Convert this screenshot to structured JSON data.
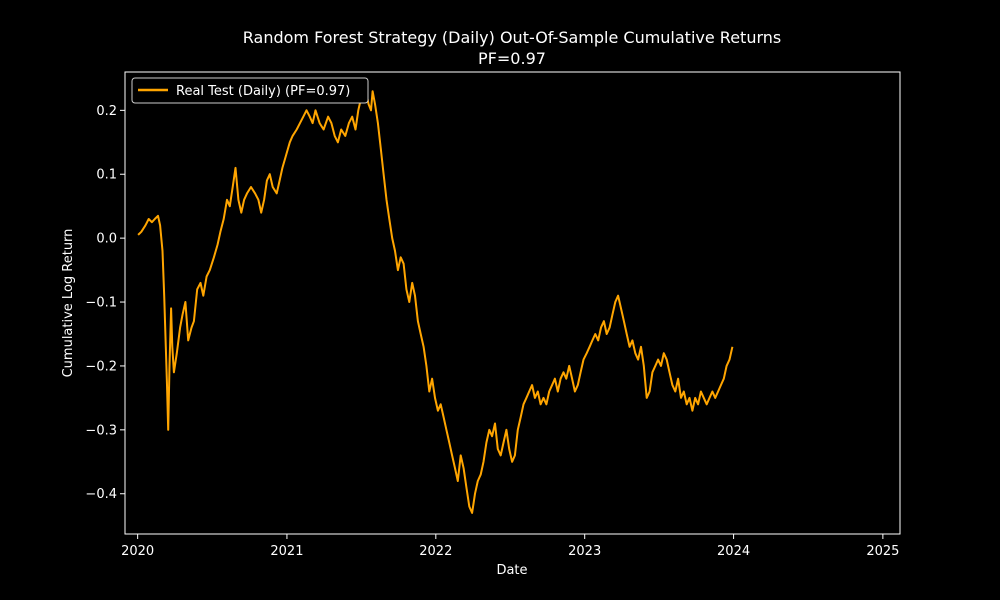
{
  "chart_data": {
    "type": "line",
    "title": "Random Forest Strategy (Daily) Out-Of-Sample Cumulative Returns",
    "subtitle": "PF=0.97",
    "xlabel": "Date",
    "ylabel": "Cumulative Log Return",
    "x_ticks": [
      "2020",
      "2021",
      "2022",
      "2023",
      "2024",
      "2025"
    ],
    "y_ticks": [
      "0.2",
      "0.1",
      "0.0",
      "−0.1",
      "−0.2",
      "−0.3",
      "−0.4"
    ],
    "xlim": [
      "2019-12-01",
      "2025-02-12"
    ],
    "ylim": [
      -0.463,
      0.26
    ],
    "grid": false,
    "legend": {
      "position": "top-left"
    },
    "series": [
      {
        "name": "Real Test (Daily) (PF=0.97)",
        "color": "#ffa500",
        "points": [
          [
            "2020-01-02",
            0.005
          ],
          [
            "2020-01-10",
            0.01
          ],
          [
            "2020-01-20",
            0.02
          ],
          [
            "2020-01-28",
            0.03
          ],
          [
            "2020-02-05",
            0.025
          ],
          [
            "2020-02-12",
            0.03
          ],
          [
            "2020-02-20",
            0.035
          ],
          [
            "2020-02-25",
            0.02
          ],
          [
            "2020-03-02",
            -0.02
          ],
          [
            "2020-03-06",
            -0.09
          ],
          [
            "2020-03-10",
            -0.17
          ],
          [
            "2020-03-13",
            -0.23
          ],
          [
            "2020-03-16",
            -0.3
          ],
          [
            "2020-03-19",
            -0.2
          ],
          [
            "2020-03-23",
            -0.11
          ],
          [
            "2020-03-26",
            -0.17
          ],
          [
            "2020-03-30",
            -0.21
          ],
          [
            "2020-04-06",
            -0.18
          ],
          [
            "2020-04-14",
            -0.14
          ],
          [
            "2020-04-20",
            -0.12
          ],
          [
            "2020-04-27",
            -0.1
          ],
          [
            "2020-05-04",
            -0.16
          ],
          [
            "2020-05-12",
            -0.14
          ],
          [
            "2020-05-18",
            -0.13
          ],
          [
            "2020-05-26",
            -0.08
          ],
          [
            "2020-06-03",
            -0.07
          ],
          [
            "2020-06-10",
            -0.09
          ],
          [
            "2020-06-18",
            -0.06
          ],
          [
            "2020-06-26",
            -0.05
          ],
          [
            "2020-07-06",
            -0.03
          ],
          [
            "2020-07-15",
            -0.01
          ],
          [
            "2020-07-22",
            0.01
          ],
          [
            "2020-07-30",
            0.03
          ],
          [
            "2020-08-07",
            0.06
          ],
          [
            "2020-08-14",
            0.05
          ],
          [
            "2020-08-21",
            0.08
          ],
          [
            "2020-08-28",
            0.11
          ],
          [
            "2020-09-04",
            0.06
          ],
          [
            "2020-09-11",
            0.04
          ],
          [
            "2020-09-18",
            0.06
          ],
          [
            "2020-09-25",
            0.07
          ],
          [
            "2020-10-05",
            0.08
          ],
          [
            "2020-10-15",
            0.07
          ],
          [
            "2020-10-23",
            0.06
          ],
          [
            "2020-10-30",
            0.04
          ],
          [
            "2020-11-06",
            0.06
          ],
          [
            "2020-11-13",
            0.09
          ],
          [
            "2020-11-20",
            0.1
          ],
          [
            "2020-11-27",
            0.08
          ],
          [
            "2020-12-07",
            0.07
          ],
          [
            "2020-12-14",
            0.09
          ],
          [
            "2020-12-21",
            0.11
          ],
          [
            "2020-12-30",
            0.13
          ],
          [
            "2021-01-08",
            0.15
          ],
          [
            "2021-01-15",
            0.16
          ],
          [
            "2021-01-25",
            0.17
          ],
          [
            "2021-02-02",
            0.18
          ],
          [
            "2021-02-10",
            0.19
          ],
          [
            "2021-02-18",
            0.2
          ],
          [
            "2021-02-26",
            0.19
          ],
          [
            "2021-03-05",
            0.18
          ],
          [
            "2021-03-12",
            0.2
          ],
          [
            "2021-03-22",
            0.18
          ],
          [
            "2021-04-01",
            0.17
          ],
          [
            "2021-04-12",
            0.19
          ],
          [
            "2021-04-20",
            0.18
          ],
          [
            "2021-04-28",
            0.16
          ],
          [
            "2021-05-06",
            0.15
          ],
          [
            "2021-05-14",
            0.17
          ],
          [
            "2021-05-24",
            0.16
          ],
          [
            "2021-06-02",
            0.18
          ],
          [
            "2021-06-10",
            0.19
          ],
          [
            "2021-06-18",
            0.17
          ],
          [
            "2021-06-25",
            0.2
          ],
          [
            "2021-07-02",
            0.22
          ],
          [
            "2021-07-08",
            0.24
          ],
          [
            "2021-07-14",
            0.23
          ],
          [
            "2021-07-20",
            0.21
          ],
          [
            "2021-07-26",
            0.2
          ],
          [
            "2021-07-30",
            0.23
          ],
          [
            "2021-08-05",
            0.21
          ],
          [
            "2021-08-12",
            0.18
          ],
          [
            "2021-08-19",
            0.14
          ],
          [
            "2021-08-26",
            0.1
          ],
          [
            "2021-09-02",
            0.06
          ],
          [
            "2021-09-09",
            0.03
          ],
          [
            "2021-09-16",
            0.0
          ],
          [
            "2021-09-23",
            -0.02
          ],
          [
            "2021-09-30",
            -0.05
          ],
          [
            "2021-10-07",
            -0.03
          ],
          [
            "2021-10-14",
            -0.04
          ],
          [
            "2021-10-21",
            -0.08
          ],
          [
            "2021-10-28",
            -0.1
          ],
          [
            "2021-11-04",
            -0.07
          ],
          [
            "2021-11-11",
            -0.09
          ],
          [
            "2021-11-18",
            -0.13
          ],
          [
            "2021-11-25",
            -0.15
          ],
          [
            "2021-12-02",
            -0.17
          ],
          [
            "2021-12-09",
            -0.2
          ],
          [
            "2021-12-16",
            -0.24
          ],
          [
            "2021-12-23",
            -0.22
          ],
          [
            "2021-12-30",
            -0.25
          ],
          [
            "2022-01-06",
            -0.27
          ],
          [
            "2022-01-13",
            -0.26
          ],
          [
            "2022-01-20",
            -0.28
          ],
          [
            "2022-01-27",
            -0.3
          ],
          [
            "2022-02-03",
            -0.32
          ],
          [
            "2022-02-10",
            -0.34
          ],
          [
            "2022-02-17",
            -0.36
          ],
          [
            "2022-02-24",
            -0.38
          ],
          [
            "2022-03-03",
            -0.34
          ],
          [
            "2022-03-10",
            -0.36
          ],
          [
            "2022-03-17",
            -0.39
          ],
          [
            "2022-03-24",
            -0.42
          ],
          [
            "2022-03-31",
            -0.43
          ],
          [
            "2022-04-07",
            -0.4
          ],
          [
            "2022-04-14",
            -0.38
          ],
          [
            "2022-04-21",
            -0.37
          ],
          [
            "2022-04-28",
            -0.35
          ],
          [
            "2022-05-05",
            -0.32
          ],
          [
            "2022-05-12",
            -0.3
          ],
          [
            "2022-05-19",
            -0.31
          ],
          [
            "2022-05-26",
            -0.29
          ],
          [
            "2022-06-02",
            -0.33
          ],
          [
            "2022-06-09",
            -0.34
          ],
          [
            "2022-06-16",
            -0.32
          ],
          [
            "2022-06-23",
            -0.3
          ],
          [
            "2022-06-30",
            -0.33
          ],
          [
            "2022-07-07",
            -0.35
          ],
          [
            "2022-07-14",
            -0.34
          ],
          [
            "2022-07-21",
            -0.3
          ],
          [
            "2022-07-28",
            -0.28
          ],
          [
            "2022-08-04",
            -0.26
          ],
          [
            "2022-08-11",
            -0.25
          ],
          [
            "2022-08-18",
            -0.24
          ],
          [
            "2022-08-25",
            -0.23
          ],
          [
            "2022-09-01",
            -0.25
          ],
          [
            "2022-09-08",
            -0.24
          ],
          [
            "2022-09-15",
            -0.26
          ],
          [
            "2022-09-22",
            -0.25
          ],
          [
            "2022-09-29",
            -0.26
          ],
          [
            "2022-10-06",
            -0.24
          ],
          [
            "2022-10-13",
            -0.23
          ],
          [
            "2022-10-20",
            -0.22
          ],
          [
            "2022-10-27",
            -0.24
          ],
          [
            "2022-11-03",
            -0.22
          ],
          [
            "2022-11-10",
            -0.21
          ],
          [
            "2022-11-17",
            -0.22
          ],
          [
            "2022-11-24",
            -0.2
          ],
          [
            "2022-12-01",
            -0.22
          ],
          [
            "2022-12-08",
            -0.24
          ],
          [
            "2022-12-15",
            -0.23
          ],
          [
            "2022-12-22",
            -0.21
          ],
          [
            "2022-12-29",
            -0.19
          ],
          [
            "2023-01-06",
            -0.18
          ],
          [
            "2023-01-13",
            -0.17
          ],
          [
            "2023-01-20",
            -0.16
          ],
          [
            "2023-01-27",
            -0.15
          ],
          [
            "2023-02-03",
            -0.16
          ],
          [
            "2023-02-10",
            -0.14
          ],
          [
            "2023-02-17",
            -0.13
          ],
          [
            "2023-02-24",
            -0.15
          ],
          [
            "2023-03-03",
            -0.14
          ],
          [
            "2023-03-10",
            -0.12
          ],
          [
            "2023-03-17",
            -0.1
          ],
          [
            "2023-03-24",
            -0.09
          ],
          [
            "2023-03-31",
            -0.11
          ],
          [
            "2023-04-07",
            -0.13
          ],
          [
            "2023-04-14",
            -0.15
          ],
          [
            "2023-04-21",
            -0.17
          ],
          [
            "2023-04-28",
            -0.16
          ],
          [
            "2023-05-05",
            -0.18
          ],
          [
            "2023-05-12",
            -0.19
          ],
          [
            "2023-05-19",
            -0.17
          ],
          [
            "2023-05-26",
            -0.2
          ],
          [
            "2023-06-02",
            -0.25
          ],
          [
            "2023-06-09",
            -0.24
          ],
          [
            "2023-06-16",
            -0.21
          ],
          [
            "2023-06-23",
            -0.2
          ],
          [
            "2023-06-30",
            -0.19
          ],
          [
            "2023-07-07",
            -0.2
          ],
          [
            "2023-07-14",
            -0.18
          ],
          [
            "2023-07-21",
            -0.19
          ],
          [
            "2023-07-28",
            -0.21
          ],
          [
            "2023-08-04",
            -0.23
          ],
          [
            "2023-08-11",
            -0.24
          ],
          [
            "2023-08-18",
            -0.22
          ],
          [
            "2023-08-25",
            -0.25
          ],
          [
            "2023-09-01",
            -0.24
          ],
          [
            "2023-09-08",
            -0.26
          ],
          [
            "2023-09-15",
            -0.25
          ],
          [
            "2023-09-22",
            -0.27
          ],
          [
            "2023-09-29",
            -0.25
          ],
          [
            "2023-10-06",
            -0.26
          ],
          [
            "2023-10-13",
            -0.24
          ],
          [
            "2023-10-20",
            -0.25
          ],
          [
            "2023-10-27",
            -0.26
          ],
          [
            "2023-11-03",
            -0.25
          ],
          [
            "2023-11-10",
            -0.24
          ],
          [
            "2023-11-17",
            -0.25
          ],
          [
            "2023-11-24",
            -0.24
          ],
          [
            "2023-12-01",
            -0.23
          ],
          [
            "2023-12-08",
            -0.22
          ],
          [
            "2023-12-15",
            -0.2
          ],
          [
            "2023-12-22",
            -0.19
          ],
          [
            "2023-12-29",
            -0.17
          ]
        ]
      }
    ]
  }
}
